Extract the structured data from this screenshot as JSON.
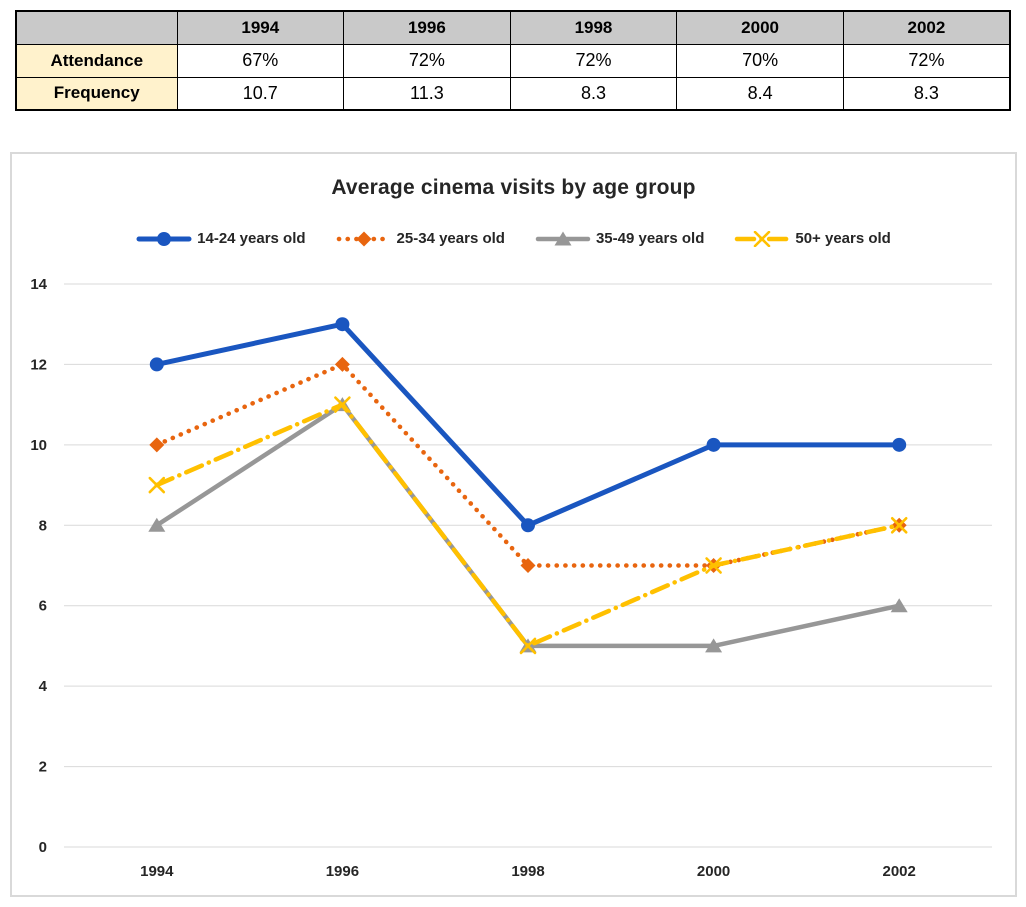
{
  "table": {
    "columns": [
      "",
      "1994",
      "1996",
      "1998",
      "2000",
      "2002"
    ],
    "rows": [
      {
        "label": "Attendance",
        "values": [
          "67%",
          "72%",
          "72%",
          "70%",
          "72%"
        ]
      },
      {
        "label": "Frequency",
        "values": [
          "10.7",
          "11.3",
          "8.3",
          "8.4",
          "8.3"
        ]
      }
    ],
    "header_bg": "#C9C9C9",
    "label_bg": "#FFF2CC"
  },
  "chart_data": {
    "type": "line",
    "title": "Average cinema visits by age group",
    "categories": [
      "1994",
      "1996",
      "1998",
      "2000",
      "2002"
    ],
    "series": [
      {
        "name": "14-24 years old",
        "values": [
          12,
          13,
          8,
          10,
          10
        ],
        "color": "#1A56C0",
        "marker": "circle",
        "dash": "solid",
        "width": 5
      },
      {
        "name": "25-34 years old",
        "values": [
          10,
          12,
          7,
          7,
          8
        ],
        "color": "#E8650F",
        "marker": "diamond",
        "dash": "dotted",
        "width": 4.6
      },
      {
        "name": "35-49 years old",
        "values": [
          8,
          11,
          5,
          5,
          6
        ],
        "color": "#979797",
        "marker": "triangle",
        "dash": "solid",
        "width": 4.5
      },
      {
        "name": "50+ years old",
        "values": [
          9,
          11,
          5,
          7,
          8
        ],
        "color": "#FFC000",
        "marker": "x-cross",
        "dash": "dashdot",
        "width": 4.5
      }
    ],
    "xlabel": "",
    "ylabel": "",
    "ylim": [
      0,
      14
    ],
    "ytick_step": 2,
    "yticks": [
      "0",
      "2",
      "4",
      "6",
      "8",
      "10",
      "12",
      "14"
    ],
    "grid": true,
    "gridline_color": "#D9D9D9",
    "tick_color": "#262626",
    "legend_position": "top"
  }
}
